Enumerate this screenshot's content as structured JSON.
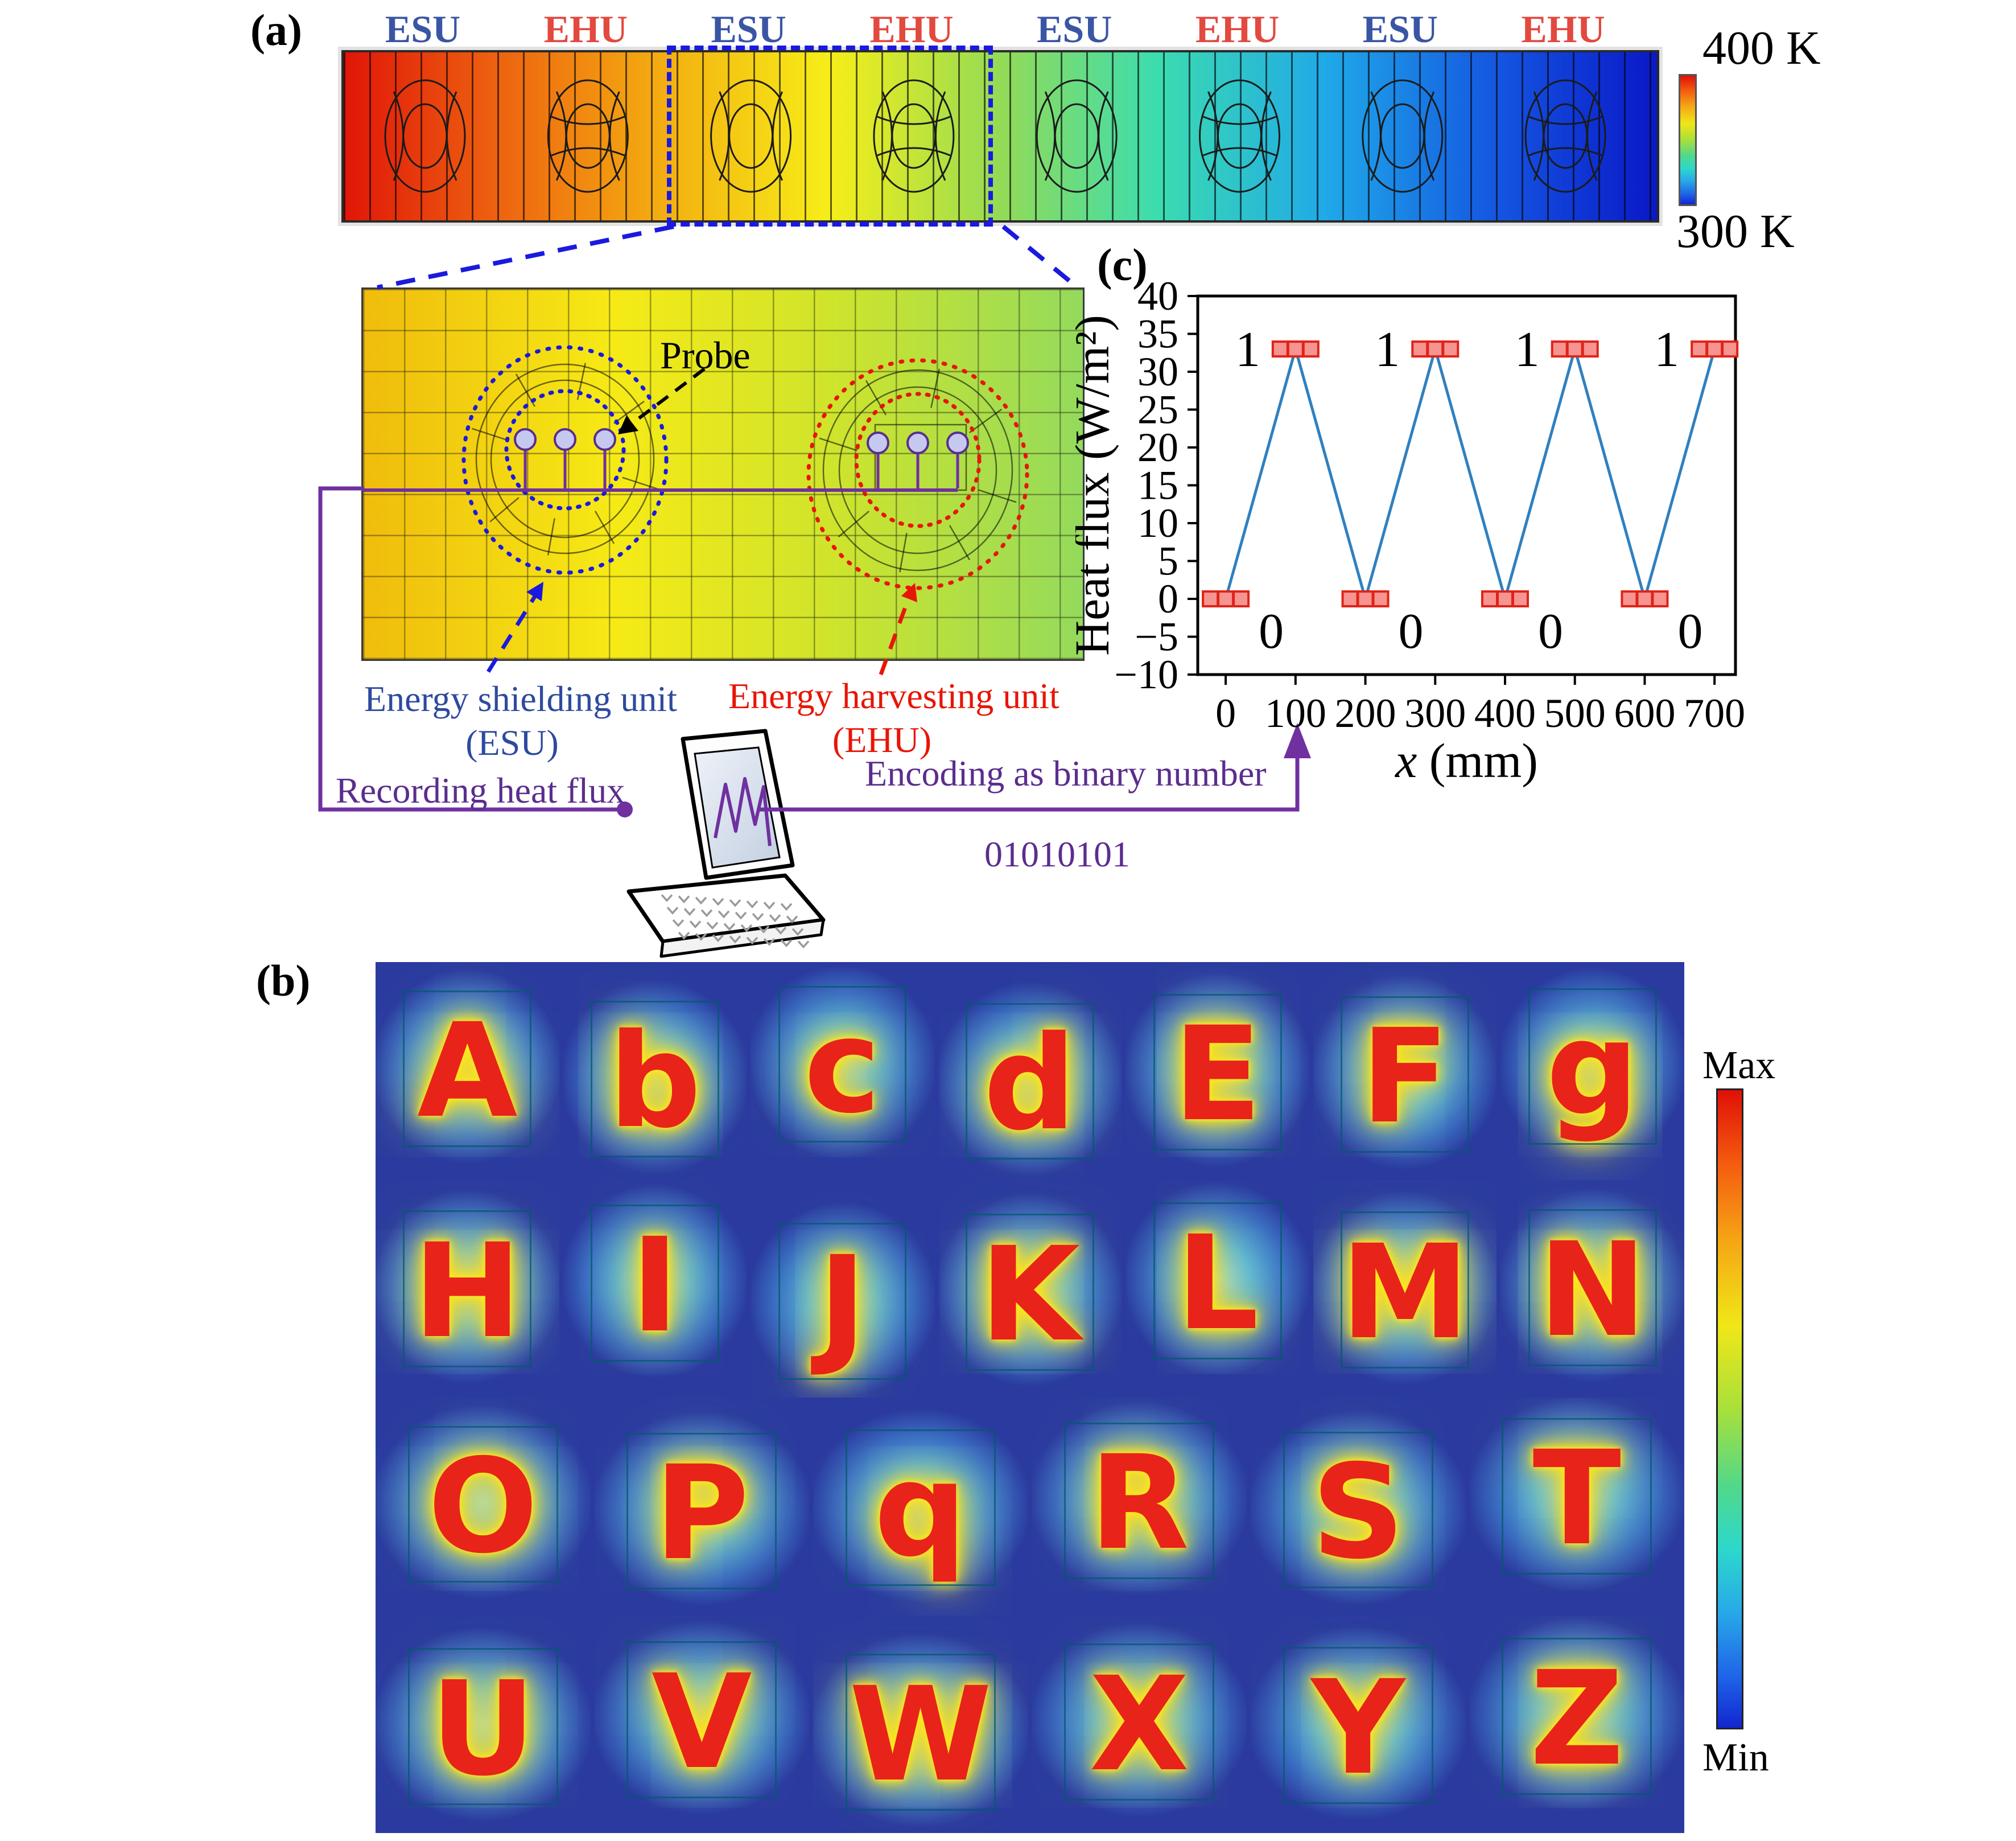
{
  "figure": {
    "panel_a_label": "(a)",
    "panel_b_label": "(b)",
    "panel_c_label": "(c)"
  },
  "panel_a": {
    "unit_labels": [
      "ESU",
      "EHU",
      "ESU",
      "EHU",
      "ESU",
      "EHU",
      "ESU",
      "EHU"
    ],
    "colorbar_top": "400 K",
    "colorbar_bottom": "300 K",
    "probe_label": "Probe",
    "esu_caption_line1": "Energy shielding unit",
    "esu_caption_line2": "(ESU)",
    "ehu_caption_line1": "Energy harvesting unit",
    "ehu_caption_line2": "(EHU)",
    "recording_label": "Recording heat flux",
    "encoding_label": "Encoding as binary number",
    "binary_string": "01010101",
    "esu_color": "#3a55a4",
    "ehu_color": "#e2493f",
    "wire_color": "#7030a0"
  },
  "panel_b": {
    "letters": [
      "A",
      "b",
      "c",
      "d",
      "E",
      "F",
      "g",
      "H",
      "I",
      "J",
      "K",
      "L",
      "M",
      "N",
      "O",
      "P",
      "q",
      "R",
      "S",
      "T",
      "U",
      "V",
      "W",
      "X",
      "Y",
      "Z"
    ],
    "rows": [
      7,
      7,
      6,
      6
    ],
    "colorbar_top": "Max",
    "colorbar_bottom": "Min"
  },
  "chart_data": {
    "type": "line",
    "x": [
      0,
      100,
      200,
      300,
      400,
      500,
      600,
      700
    ],
    "y": [
      0,
      33,
      0,
      33,
      0,
      33,
      0,
      33
    ],
    "point_labels": [
      "0",
      "1",
      "0",
      "1",
      "0",
      "1",
      "0",
      "1"
    ],
    "xlabel_italic": "x",
    "xlabel_rest": " (mm)",
    "ylabel": "Heat flux (W/m²)",
    "xticks": [
      0,
      100,
      200,
      300,
      400,
      500,
      600,
      700
    ],
    "yticks": [
      40,
      35,
      30,
      25,
      20,
      15,
      10,
      5,
      0,
      -5,
      -10
    ],
    "xlim": [
      -40,
      730
    ],
    "ylim": [
      -10,
      40
    ],
    "grid": false,
    "legend": null,
    "line_color": "#2f80c0",
    "marker_fill": "#f59490",
    "marker_border": "#e02318"
  }
}
